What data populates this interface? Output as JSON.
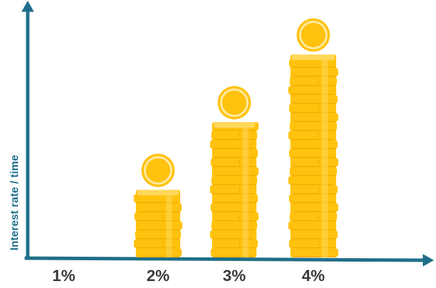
{
  "chart_data": {
    "type": "bar",
    "style": "coin-stacks",
    "title": "",
    "xlabel": "",
    "ylabel": "Interest rate / time",
    "categories": [
      "1%",
      "2%",
      "3%",
      "4%"
    ],
    "values": [
      0,
      1,
      2,
      3
    ],
    "ylim": [
      0,
      3.6
    ],
    "grid": false,
    "legend": "none",
    "colors": {
      "axis": "#1f6f8b",
      "coin": "#ffc20e",
      "coin_shade": "#f3ad00",
      "coin_highlight": "#ffd75a",
      "coin_rim": "#ffe9a3",
      "label": "#3a3a3a"
    }
  }
}
